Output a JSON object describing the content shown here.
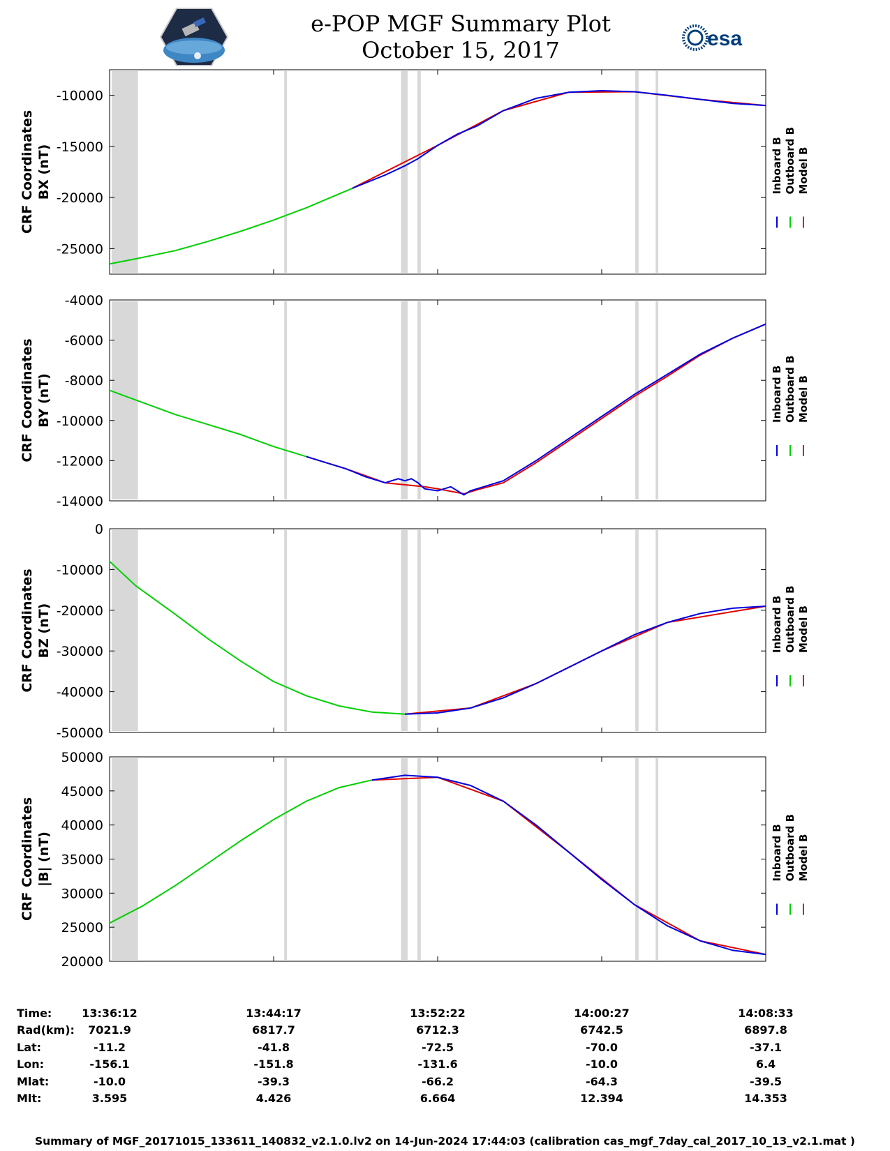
{
  "header": {
    "title": "e-POP MGF Summary Plot",
    "date": "October 15, 2017",
    "logo_left": "cassiope-mission-badge",
    "logo_right_text": "esa"
  },
  "colors": {
    "inboard": "#0000e0",
    "outboard": "#00d000",
    "model": "#e00000",
    "gap": "#d8d8d8"
  },
  "chart_data": [
    {
      "type": "line",
      "ylabel_line1": "CRF Coordinates",
      "ylabel_line2": "BX (nT)",
      "ylim": [
        -27500,
        -7500
      ],
      "yticks": [
        -25000,
        -20000,
        -15000,
        -10000
      ],
      "ytick_labels": [
        "-25000",
        "-20000",
        "-15000",
        "-10000"
      ],
      "series": [
        {
          "name": "Outboard B",
          "x": [
            0.0,
            0.04,
            0.1,
            0.15,
            0.2,
            0.25,
            0.3,
            0.37
          ],
          "y": [
            -26500,
            -26000,
            -25200,
            -24300,
            -23300,
            -22200,
            -21000,
            -19100
          ]
        },
        {
          "name": "Inboard B",
          "x": [
            0.37,
            0.42,
            0.45,
            0.47,
            0.5,
            0.53,
            0.56,
            0.6,
            0.65,
            0.7,
            0.75,
            0.8,
            0.85,
            0.9,
            0.95,
            1.0
          ],
          "y": [
            -19100,
            -17800,
            -16900,
            -16200,
            -14900,
            -13800,
            -13000,
            -11500,
            -10300,
            -9700,
            -9550,
            -9650,
            -10000,
            -10400,
            -10800,
            -11000
          ]
        },
        {
          "name": "Model B",
          "x": [
            0.37,
            0.5,
            0.6,
            0.7,
            0.8,
            0.9,
            1.0
          ],
          "y": [
            -19100,
            -14900,
            -11500,
            -9700,
            -9650,
            -10400,
            -11000
          ]
        }
      ]
    },
    {
      "type": "line",
      "ylabel_line1": "CRF Coordinates",
      "ylabel_line2": "BY (nT)",
      "ylim": [
        -14000,
        -4000
      ],
      "yticks": [
        -14000,
        -12000,
        -10000,
        -8000,
        -6000,
        -4000
      ],
      "ytick_labels": [
        "-14000",
        "-12000",
        "-10000",
        "-8000",
        "-6000",
        "-4000"
      ],
      "series": [
        {
          "name": "Outboard B",
          "x": [
            0.0,
            0.05,
            0.1,
            0.15,
            0.2,
            0.25,
            0.3
          ],
          "y": [
            -8500,
            -9100,
            -9700,
            -10200,
            -10700,
            -11300,
            -11800
          ]
        },
        {
          "name": "Inboard B",
          "x": [
            0.3,
            0.33,
            0.36,
            0.39,
            0.42,
            0.44,
            0.45,
            0.46,
            0.47,
            0.48,
            0.5,
            0.52,
            0.54,
            0.55,
            0.56,
            0.6,
            0.65,
            0.7,
            0.75,
            0.8,
            0.85,
            0.9,
            0.95,
            1.0
          ],
          "y": [
            -11800,
            -12100,
            -12400,
            -12800,
            -13100,
            -12900,
            -13000,
            -12900,
            -13100,
            -13400,
            -13500,
            -13300,
            -13700,
            -13500,
            -13400,
            -13000,
            -12000,
            -10900,
            -9800,
            -8700,
            -7700,
            -6700,
            -5900,
            -5200
          ]
        },
        {
          "name": "Model B",
          "x": [
            0.3,
            0.36,
            0.42,
            0.48,
            0.5,
            0.54,
            0.56,
            0.6,
            0.65,
            0.7,
            0.75,
            0.8,
            0.85,
            0.9,
            0.95,
            1.0
          ],
          "y": [
            -11800,
            -12400,
            -13100,
            -13300,
            -13400,
            -13650,
            -13450,
            -13100,
            -12100,
            -11000,
            -9900,
            -8800,
            -7800,
            -6750,
            -5900,
            -5200
          ]
        }
      ]
    },
    {
      "type": "line",
      "ylabel_line1": "CRF Coordinates",
      "ylabel_line2": "BZ (nT)",
      "ylim": [
        -50000,
        0
      ],
      "yticks": [
        -50000,
        -40000,
        -30000,
        -20000,
        -10000,
        0
      ],
      "ytick_labels": [
        "-50000",
        "-40000",
        "-30000",
        "-20000",
        "-10000",
        "0"
      ],
      "series": [
        {
          "name": "Outboard B",
          "x": [
            0.0,
            0.04,
            0.1,
            0.15,
            0.2,
            0.25,
            0.3,
            0.35,
            0.4,
            0.45
          ],
          "y": [
            -8000,
            -14000,
            -21000,
            -27000,
            -32500,
            -37500,
            -41000,
            -43500,
            -45000,
            -45500
          ]
        },
        {
          "name": "Inboard B",
          "x": [
            0.45,
            0.5,
            0.55,
            0.6,
            0.65,
            0.7,
            0.75,
            0.8,
            0.85,
            0.9,
            0.95,
            1.0
          ],
          "y": [
            -45500,
            -45200,
            -44000,
            -41500,
            -38000,
            -34000,
            -30000,
            -26000,
            -23000,
            -20800,
            -19500,
            -19000
          ]
        },
        {
          "name": "Model B",
          "x": [
            0.45,
            0.55,
            0.65,
            0.75,
            0.85,
            1.0
          ],
          "y": [
            -45500,
            -44000,
            -38000,
            -30000,
            -23000,
            -19000
          ]
        }
      ]
    },
    {
      "type": "line",
      "ylabel_line1": "CRF Coordinates",
      "ylabel_line2": "|B| (nT)",
      "ylim": [
        20000,
        50000
      ],
      "yticks": [
        20000,
        25000,
        30000,
        35000,
        40000,
        45000,
        50000
      ],
      "ytick_labels": [
        "20000",
        "25000",
        "30000",
        "35000",
        "40000",
        "45000",
        "50000"
      ],
      "series": [
        {
          "name": "Outboard B",
          "x": [
            0.0,
            0.05,
            0.1,
            0.15,
            0.2,
            0.25,
            0.3,
            0.35,
            0.4
          ],
          "y": [
            25600,
            28100,
            31100,
            34400,
            37700,
            40800,
            43500,
            45500,
            46600
          ]
        },
        {
          "name": "Inboard B",
          "x": [
            0.4,
            0.45,
            0.5,
            0.55,
            0.6,
            0.65,
            0.7,
            0.75,
            0.8,
            0.85,
            0.9,
            0.95,
            1.0
          ],
          "y": [
            46600,
            47300,
            47000,
            45800,
            43500,
            40000,
            36000,
            32000,
            28300,
            25200,
            23000,
            21600,
            21000
          ]
        },
        {
          "name": "Model B",
          "x": [
            0.4,
            0.5,
            0.6,
            0.7,
            0.8,
            0.9,
            1.0
          ],
          "y": [
            46600,
            47000,
            43500,
            36000,
            28300,
            23000,
            21000
          ]
        }
      ]
    }
  ],
  "gaps": [
    [
      0.0,
      0.04
    ],
    [
      0.263,
      0.267
    ],
    [
      0.441,
      0.451
    ],
    [
      0.466,
      0.471
    ],
    [
      0.798,
      0.803
    ],
    [
      0.829,
      0.833
    ]
  ],
  "legend": [
    "Inboard B",
    "Outboard B",
    "Model B"
  ],
  "ephemeris": {
    "labels": [
      "Time:",
      "Rad(km):",
      "Lat:",
      "Lon:",
      "Mlat:",
      "Mlt:"
    ],
    "columns": [
      [
        "13:36:12",
        "7021.9",
        "-11.2",
        "-156.1",
        "-10.0",
        "3.595"
      ],
      [
        "13:44:17",
        "6817.7",
        "-41.8",
        "-151.8",
        "-39.3",
        "4.426"
      ],
      [
        "13:52:22",
        "6712.3",
        "-72.5",
        "-131.6",
        "-66.2",
        "6.664"
      ],
      [
        "14:00:27",
        "6742.5",
        "-70.0",
        "-10.0",
        "-64.3",
        "12.394"
      ],
      [
        "14:08:33",
        "6897.8",
        "-37.1",
        "6.4",
        "-39.5",
        "14.353"
      ]
    ]
  },
  "footer": "Summary of MGF_20171015_133611_140832_v2.1.0.lv2 on 14-Jun-2024 17:44:03 (calibration cas_mgf_7day_cal_2017_10_13_v2.1.mat )"
}
